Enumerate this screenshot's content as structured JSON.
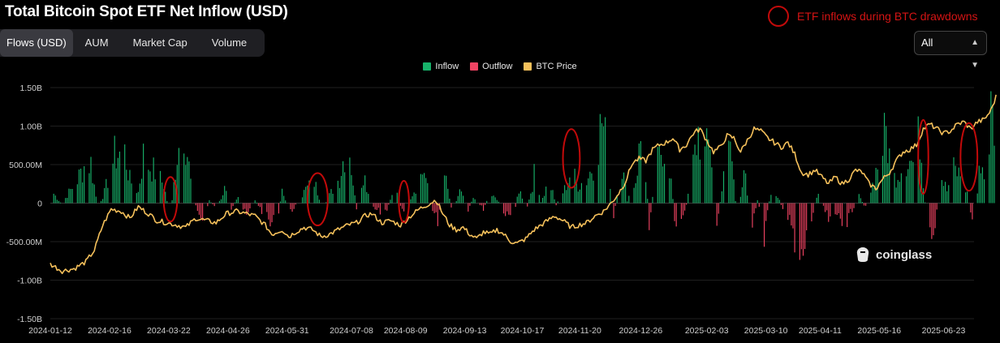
{
  "title": "Total Bitcoin Spot ETF Net Inflow (USD)",
  "tabs": [
    {
      "label": "Flows (USD)",
      "active": true
    },
    {
      "label": "AUM",
      "active": false
    },
    {
      "label": "Market Cap",
      "active": false
    },
    {
      "label": "Volume",
      "active": false
    }
  ],
  "range_select": {
    "value": "All",
    "icon": "up-down-caret-icon"
  },
  "annotation": {
    "text": "ETF inflows during BTC drawdowns",
    "color": "#c20a0a"
  },
  "watermark": {
    "text": "coinglass",
    "icon": "coinglass-logo-icon"
  },
  "colors": {
    "inflow": "#17b26a",
    "outflow": "#f04362",
    "price": "#f6c15b",
    "annotation": "#c20a0a"
  },
  "chart_data": {
    "type": "bar",
    "legend": [
      {
        "name": "Inflow",
        "color": "#17b26a"
      },
      {
        "name": "Outflow",
        "color": "#f04362"
      },
      {
        "name": "BTC Price",
        "color": "#f6c15b"
      }
    ],
    "legend_position": "top-center",
    "grid": true,
    "xlim": [
      "2024-01-12",
      "2025-07-11"
    ],
    "ylim": [
      -1500000000,
      1500000000
    ],
    "y_ticks": [
      {
        "v": 1500000000,
        "label": "1.50B"
      },
      {
        "v": 1000000000,
        "label": "1.00B"
      },
      {
        "v": 500000000,
        "label": "500.00M"
      },
      {
        "v": 0,
        "label": "0"
      },
      {
        "v": -500000000,
        "label": "-500.00M"
      },
      {
        "v": -1000000000,
        "label": "-1.00B"
      },
      {
        "v": -1500000000,
        "label": "-1.50B"
      }
    ],
    "x_tick_labels": [
      "2024-01-12",
      "2024-02-16",
      "2024-03-22",
      "2024-04-26",
      "2024-05-31",
      "2024-07-08",
      "2024-08-09",
      "2024-09-13",
      "2024-10-17",
      "2024-11-20",
      "2024-12-26",
      "2025-02-03",
      "2025-03-10",
      "2025-04-11",
      "2025-05-16",
      "2025-06-23"
    ],
    "flow_points_M": [
      [
        0,
        180
      ],
      [
        7,
        -20
      ],
      [
        10,
        110
      ],
      [
        15,
        260
      ],
      [
        20,
        480
      ],
      [
        24,
        520
      ],
      [
        28,
        -60
      ],
      [
        32,
        140
      ],
      [
        38,
        620
      ],
      [
        44,
        660
      ],
      [
        47,
        300
      ],
      [
        52,
        140
      ],
      [
        55,
        620
      ],
      [
        58,
        500
      ],
      [
        63,
        380
      ],
      [
        67,
        240
      ],
      [
        71,
        -180
      ],
      [
        75,
        660
      ],
      [
        79,
        1020
      ],
      [
        83,
        280
      ],
      [
        87,
        -120
      ],
      [
        90,
        -240
      ],
      [
        94,
        40
      ],
      [
        98,
        -80
      ],
      [
        103,
        180
      ],
      [
        107,
        -60
      ],
      [
        111,
        70
      ],
      [
        116,
        -180
      ],
      [
        121,
        40
      ],
      [
        125,
        -100
      ],
      [
        130,
        -280
      ],
      [
        134,
        -210
      ],
      [
        137,
        140
      ],
      [
        142,
        -120
      ],
      [
        147,
        40
      ],
      [
        151,
        180
      ],
      [
        156,
        280
      ],
      [
        161,
        -60
      ],
      [
        166,
        140
      ],
      [
        171,
        330
      ],
      [
        176,
        880
      ],
      [
        181,
        -120
      ],
      [
        185,
        420
      ],
      [
        190,
        -60
      ],
      [
        195,
        -120
      ],
      [
        199,
        -80
      ],
      [
        204,
        200
      ],
      [
        208,
        -120
      ],
      [
        213,
        80
      ],
      [
        218,
        300
      ],
      [
        221,
        440
      ],
      [
        225,
        -60
      ],
      [
        229,
        -220
      ],
      [
        233,
        360
      ],
      [
        238,
        -140
      ],
      [
        242,
        180
      ],
      [
        247,
        -80
      ],
      [
        250,
        60
      ],
      [
        256,
        -70
      ],
      [
        260,
        120
      ],
      [
        265,
        20
      ],
      [
        270,
        -180
      ],
      [
        274,
        -140
      ],
      [
        277,
        180
      ],
      [
        282,
        -60
      ],
      [
        286,
        360
      ],
      [
        290,
        20
      ],
      [
        295,
        300
      ],
      [
        299,
        -20
      ],
      [
        304,
        180
      ],
      [
        308,
        420
      ],
      [
        312,
        240
      ],
      [
        317,
        300
      ],
      [
        322,
        560
      ],
      [
        326,
        1080
      ],
      [
        330,
        560
      ],
      [
        333,
        -260
      ],
      [
        337,
        620
      ],
      [
        341,
        40
      ],
      [
        346,
        300
      ],
      [
        350,
        980
      ],
      [
        354,
        -260
      ],
      [
        358,
        440
      ],
      [
        362,
        760
      ],
      [
        366,
        480
      ],
      [
        370,
        -380
      ],
      [
        375,
        -140
      ],
      [
        379,
        360
      ],
      [
        383,
        920
      ],
      [
        387,
        620
      ],
      [
        390,
        820
      ],
      [
        394,
        -280
      ],
      [
        398,
        320
      ],
      [
        402,
        780
      ],
      [
        406,
        -220
      ],
      [
        410,
        480
      ],
      [
        414,
        -320
      ],
      [
        418,
        40
      ],
      [
        422,
        -420
      ],
      [
        426,
        180
      ],
      [
        430,
        80
      ],
      [
        434,
        -120
      ],
      [
        438,
        -300
      ],
      [
        442,
        -1000
      ],
      [
        446,
        -560
      ],
      [
        450,
        -220
      ],
      [
        454,
        220
      ],
      [
        458,
        -120
      ],
      [
        462,
        -320
      ],
      [
        466,
        -140
      ],
      [
        470,
        -280
      ],
      [
        474,
        -90
      ],
      [
        478,
        90
      ],
      [
        482,
        -60
      ],
      [
        486,
        240
      ],
      [
        490,
        580
      ],
      [
        494,
        920
      ],
      [
        498,
        300
      ],
      [
        502,
        420
      ],
      [
        506,
        580
      ],
      [
        510,
        520
      ],
      [
        514,
        900
      ],
      [
        518,
        -280
      ],
      [
        522,
        -640
      ],
      [
        526,
        380
      ],
      [
        530,
        160
      ],
      [
        534,
        440
      ],
      [
        538,
        360
      ],
      [
        542,
        120
      ],
      [
        546,
        -340
      ],
      [
        550,
        600
      ],
      [
        553,
        200
      ],
      [
        556,
        1160
      ],
      [
        558,
        1020
      ]
    ],
    "price_points_k": [
      [
        0,
        45
      ],
      [
        7,
        42
      ],
      [
        14,
        43
      ],
      [
        21,
        46
      ],
      [
        26,
        51
      ],
      [
        31,
        62
      ],
      [
        36,
        69
      ],
      [
        42,
        68
      ],
      [
        47,
        65
      ],
      [
        52,
        70
      ],
      [
        58,
        67
      ],
      [
        63,
        64
      ],
      [
        69,
        63
      ],
      [
        75,
        62
      ],
      [
        80,
        61
      ],
      [
        86,
        65
      ],
      [
        92,
        64
      ],
      [
        98,
        63
      ],
      [
        104,
        67
      ],
      [
        110,
        68
      ],
      [
        116,
        67
      ],
      [
        121,
        66
      ],
      [
        127,
        62
      ],
      [
        131,
        58
      ],
      [
        137,
        60
      ],
      [
        141,
        57
      ],
      [
        145,
        59
      ],
      [
        150,
        61
      ],
      [
        155,
        60
      ],
      [
        160,
        57
      ],
      [
        165,
        58
      ],
      [
        170,
        60
      ],
      [
        176,
        62
      ],
      [
        181,
        63
      ],
      [
        186,
        66
      ],
      [
        190,
        67
      ],
      [
        196,
        63
      ],
      [
        201,
        64
      ],
      [
        207,
        62
      ],
      [
        213,
        66
      ],
      [
        218,
        69
      ],
      [
        223,
        71
      ],
      [
        228,
        73
      ],
      [
        232,
        67
      ],
      [
        236,
        62
      ],
      [
        240,
        60
      ],
      [
        244,
        61
      ],
      [
        248,
        58
      ],
      [
        252,
        56
      ],
      [
        256,
        59
      ],
      [
        260,
        58
      ],
      [
        264,
        60
      ],
      [
        268,
        58
      ],
      [
        272,
        55
      ],
      [
        276,
        54
      ],
      [
        281,
        56
      ],
      [
        286,
        60
      ],
      [
        290,
        62
      ],
      [
        294,
        64
      ],
      [
        298,
        66
      ],
      [
        303,
        64
      ],
      [
        308,
        61
      ],
      [
        312,
        62
      ],
      [
        317,
        63
      ],
      [
        322,
        66
      ],
      [
        327,
        68
      ],
      [
        332,
        72
      ],
      [
        336,
        76
      ],
      [
        340,
        81
      ],
      [
        344,
        89
      ],
      [
        348,
        91
      ],
      [
        352,
        90
      ],
      [
        356,
        95
      ],
      [
        360,
        97
      ],
      [
        364,
        98
      ],
      [
        368,
        100
      ],
      [
        372,
        95
      ],
      [
        376,
        97
      ],
      [
        380,
        102
      ],
      [
        384,
        104
      ],
      [
        388,
        99
      ],
      [
        392,
        94
      ],
      [
        396,
        96
      ],
      [
        400,
        101
      ],
      [
        404,
        100
      ],
      [
        408,
        94
      ],
      [
        412,
        99
      ],
      [
        416,
        104
      ],
      [
        420,
        103
      ],
      [
        424,
        100
      ],
      [
        428,
        98
      ],
      [
        432,
        96
      ],
      [
        436,
        98
      ],
      [
        440,
        93
      ],
      [
        444,
        85
      ],
      [
        448,
        84
      ],
      [
        452,
        86
      ],
      [
        456,
        83
      ],
      [
        460,
        80
      ],
      [
        464,
        83
      ],
      [
        468,
        80
      ],
      [
        472,
        82
      ],
      [
        476,
        86
      ],
      [
        480,
        85
      ],
      [
        484,
        80
      ],
      [
        488,
        78
      ],
      [
        492,
        82
      ],
      [
        496,
        85
      ],
      [
        500,
        90
      ],
      [
        504,
        94
      ],
      [
        508,
        95
      ],
      [
        512,
        97
      ],
      [
        516,
        104
      ],
      [
        520,
        106
      ],
      [
        524,
        104
      ],
      [
        528,
        102
      ],
      [
        532,
        103
      ],
      [
        536,
        106
      ],
      [
        540,
        107
      ],
      [
        544,
        104
      ],
      [
        548,
        107
      ],
      [
        552,
        108
      ],
      [
        556,
        112
      ],
      [
        559,
        118
      ]
    ],
    "annotation_circles": [
      {
        "x_day": 71,
        "y_center_M": 50,
        "rx_days": 4,
        "ry_M": 290
      },
      {
        "x_day": 158,
        "y_center_M": 50,
        "rx_days": 6,
        "ry_M": 340
      },
      {
        "x_day": 209,
        "y_center_M": 20,
        "rx_days": 3,
        "ry_M": 270
      },
      {
        "x_day": 308,
        "y_center_M": 580,
        "rx_days": 5,
        "ry_M": 380
      },
      {
        "x_day": 516,
        "y_center_M": 600,
        "rx_days": 3,
        "ry_M": 480
      },
      {
        "x_day": 543,
        "y_center_M": 600,
        "rx_days": 5,
        "ry_M": 440
      }
    ]
  }
}
